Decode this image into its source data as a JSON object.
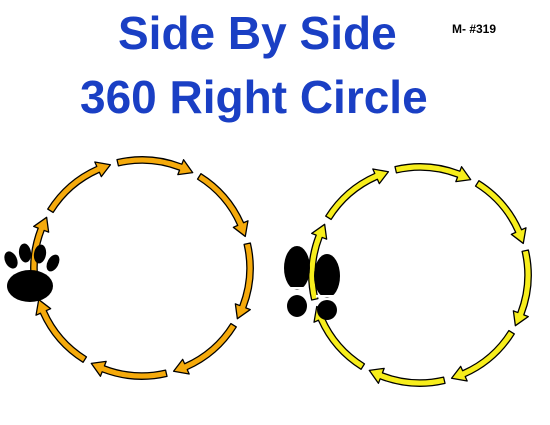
{
  "title": {
    "line1": "Side By Side",
    "line2": "360 Right Circle",
    "color": "#1a3fc4"
  },
  "code": "M- #319",
  "left_circle": {
    "arrow_fill": "#f5aa0c",
    "arrow_stroke": "#000000",
    "direction": "clockwise",
    "arrow_count": 8,
    "marker": "paw-print-icon"
  },
  "right_circle": {
    "arrow_fill": "#f7ee1c",
    "arrow_stroke": "#000000",
    "direction": "clockwise",
    "arrow_count": 8,
    "marker": "shoe-prints-icon"
  },
  "icon_color": "#000000"
}
